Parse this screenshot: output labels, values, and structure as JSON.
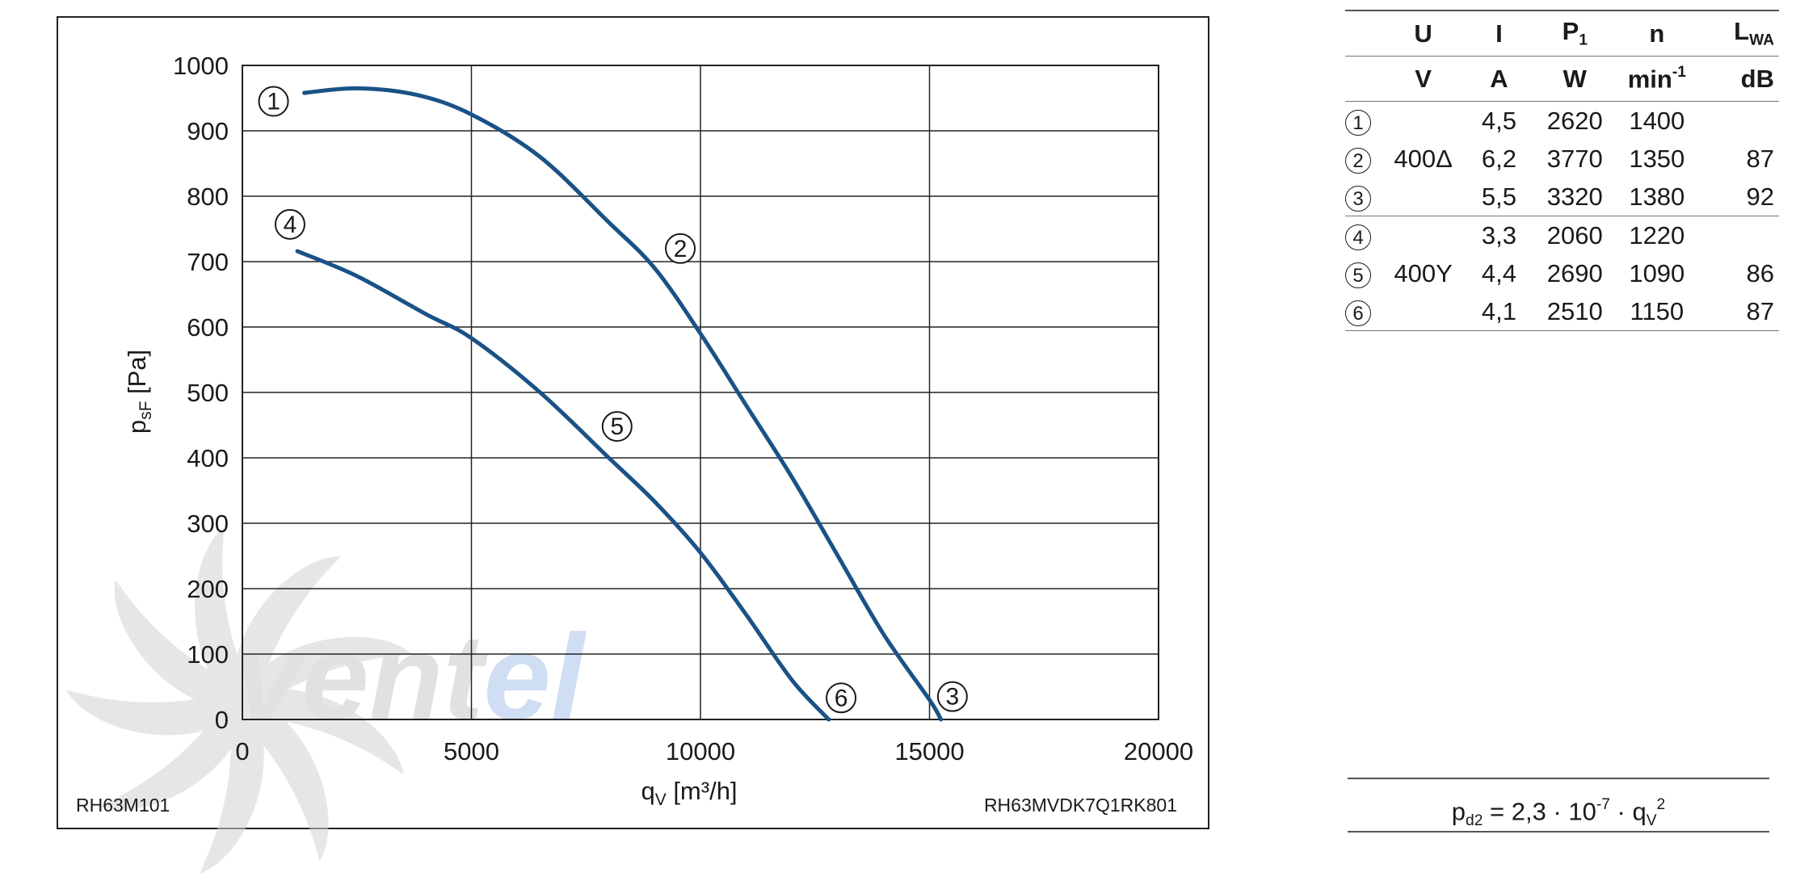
{
  "chart_data": {
    "type": "line",
    "xlabel": {
      "main": "q",
      "sub": "V",
      "units": " [m³/h]"
    },
    "ylabel": {
      "main": "p",
      "sub": "sF",
      "units": " [Pa]"
    },
    "xlim": [
      0,
      20000
    ],
    "ylim": [
      0,
      1000
    ],
    "xticks": [
      0,
      5000,
      10000,
      15000,
      20000
    ],
    "yticks": [
      0,
      100,
      200,
      300,
      400,
      500,
      600,
      700,
      800,
      900,
      1000
    ],
    "grid": true,
    "line_color": "#1a5286",
    "series": [
      {
        "x": [
          1350,
          2500,
          3800,
          5000,
          6500,
          8000,
          9000,
          10000,
          11000,
          12000,
          13000,
          14000,
          15000,
          15250
        ],
        "y": [
          958,
          965,
          955,
          925,
          860,
          760,
          690,
          590,
          480,
          370,
          250,
          130,
          30,
          0
        ]
      },
      {
        "x": [
          1200,
          2500,
          4000,
          5000,
          6500,
          8000,
          9000,
          10000,
          11000,
          12000,
          12800
        ],
        "y": [
          716,
          678,
          620,
          583,
          500,
          400,
          333,
          255,
          160,
          60,
          0
        ]
      }
    ],
    "markers": [
      {
        "label": "1",
        "x": 680,
        "y": 945
      },
      {
        "label": "2",
        "x": 9560,
        "y": 720
      },
      {
        "label": "3",
        "x": 15500,
        "y": 35
      },
      {
        "label": "4",
        "x": 1040,
        "y": 757
      },
      {
        "label": "5",
        "x": 8180,
        "y": 448
      },
      {
        "label": "6",
        "x": 13070,
        "y": 33
      }
    ],
    "footer_left": "RH63M101",
    "footer_right": "RH63MVDK7Q1RK801"
  },
  "table": {
    "header_top": {
      "u": "U",
      "i": "I",
      "p_main": "P",
      "p_sub": "1",
      "n": "n",
      "l_main": "L",
      "l_sub": "WA"
    },
    "header_units": {
      "u": "V",
      "i": "A",
      "p": "W",
      "n_main": "min",
      "n_sup": "-1",
      "l": "dB"
    },
    "rows": [
      {
        "num": "1",
        "u": "",
        "i": "4,5",
        "p": "2620",
        "n": "1400",
        "l": ""
      },
      {
        "num": "2",
        "u": "400Δ",
        "i": "6,2",
        "p": "3770",
        "n": "1350",
        "l": "87"
      },
      {
        "num": "3",
        "u": "",
        "i": "5,5",
        "p": "3320",
        "n": "1380",
        "l": "92"
      },
      {
        "num": "4",
        "u": "",
        "i": "3,3",
        "p": "2060",
        "n": "1220",
        "l": ""
      },
      {
        "num": "5",
        "u": "400Y",
        "i": "4,4",
        "p": "2690",
        "n": "1090",
        "l": "86"
      },
      {
        "num": "6",
        "u": "",
        "i": "4,1",
        "p": "2510",
        "n": "1150",
        "l": "87"
      }
    ]
  },
  "formula": {
    "p": "p",
    "p_sub": "d2",
    "eq": " = 2,3 · 10",
    "exp": "-7",
    "dot": " · q",
    "q_sub": "V",
    "q_sup": "2"
  },
  "watermark": {
    "part1": "ven",
    "part2": "t",
    "part3": "el",
    "color_gray": "#c9c9c9",
    "color_blue": "#a9c4e8"
  }
}
